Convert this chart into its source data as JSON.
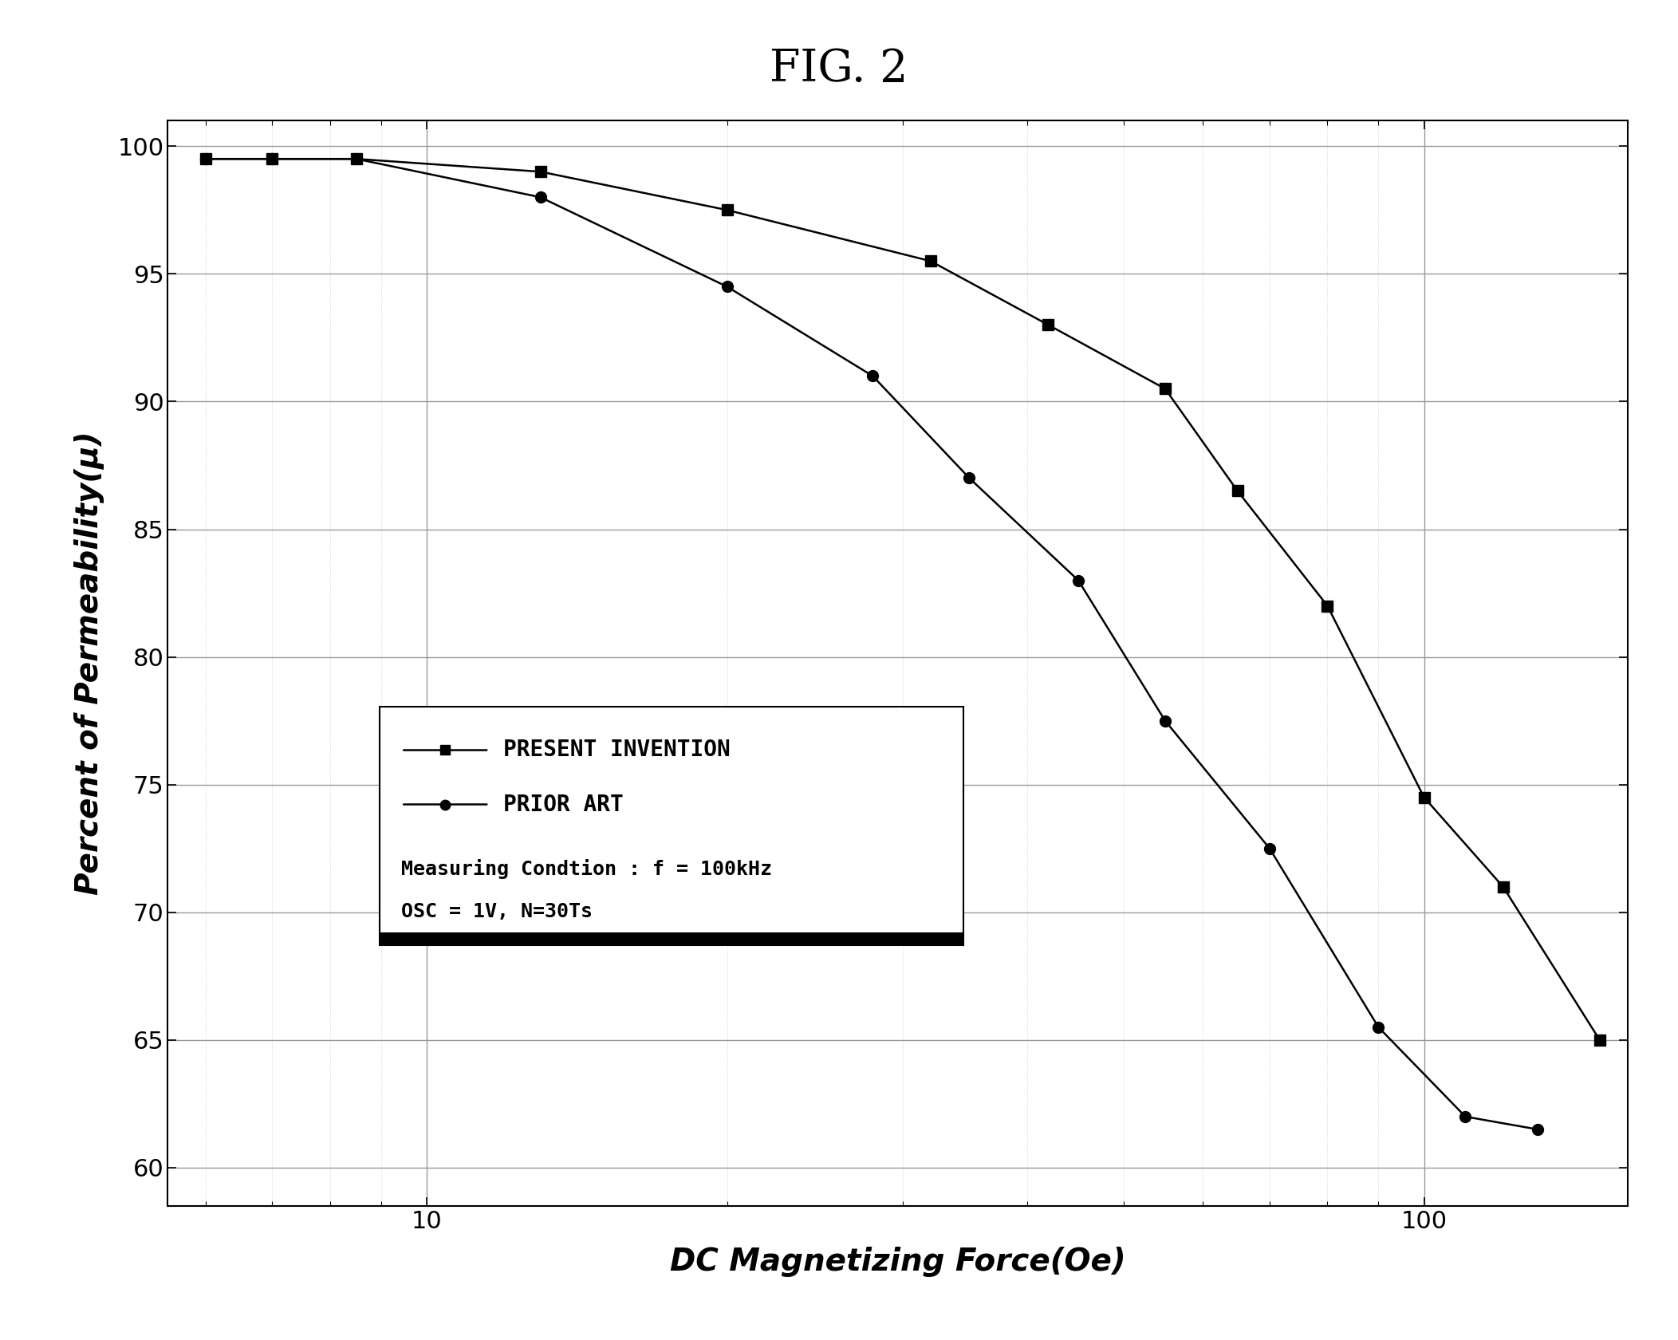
{
  "title": "FIG. 2",
  "xlabel": "DC Magnetizing Force(Oe)",
  "ylabel": "Percent of Permeability(μ)",
  "xlim": [
    5.5,
    160
  ],
  "ylim": [
    58.5,
    101.0
  ],
  "yticks": [
    60,
    65,
    70,
    75,
    80,
    85,
    90,
    95,
    100
  ],
  "present_invention_x": [
    6.0,
    7.0,
    8.5,
    13.0,
    20.0,
    32.0,
    42.0,
    55.0,
    65.0,
    80.0,
    100.0,
    120.0,
    150.0
  ],
  "present_invention_y": [
    99.5,
    99.5,
    99.5,
    99.0,
    97.5,
    95.5,
    93.0,
    90.5,
    86.5,
    82.0,
    74.5,
    71.0,
    65.0
  ],
  "prior_art_x": [
    6.0,
    7.0,
    8.5,
    13.0,
    20.0,
    28.0,
    35.0,
    45.0,
    55.0,
    70.0,
    90.0,
    110.0,
    130.0
  ],
  "prior_art_y": [
    99.5,
    99.5,
    99.5,
    98.0,
    94.5,
    91.0,
    87.0,
    83.0,
    77.5,
    72.5,
    65.5,
    62.0,
    61.5
  ],
  "legend_label_1": "–■– PRESENT INVENTION",
  "legend_label_2": "–●– PRIOR ART",
  "annotation_line1": "Measuring Condtion : f = 100kHz",
  "annotation_line2": "OSC = 1V, N=30Ts",
  "background_color": "#ffffff",
  "grid_major_color": "#999999",
  "grid_minor_color": "#cccccc",
  "line_color": "#000000",
  "present_marker": "s",
  "prior_marker": "o",
  "marker_size": 10,
  "line_width": 1.8
}
